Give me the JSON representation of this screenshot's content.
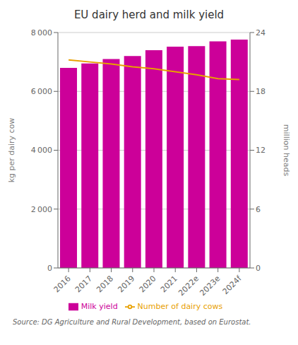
{
  "chart_data": {
    "type": "bar",
    "title": "EU dairy herd and milk yield",
    "categories": [
      "2016",
      "2017",
      "2018",
      "2019",
      "2020",
      "2021",
      "2022e",
      "2023e",
      "2024f"
    ],
    "series": [
      {
        "name": "Milk yield",
        "type": "bar",
        "color": "#CC0099",
        "values": [
          6800,
          6950,
          7100,
          7200,
          7400,
          7520,
          7540,
          7700,
          7760
        ]
      },
      {
        "name": "Number of dairy cows",
        "type": "line",
        "axis": "y2",
        "color": "#E8A000",
        "values": [
          21.2,
          21.0,
          20.8,
          20.5,
          20.3,
          20.0,
          19.7,
          19.3,
          19.2
        ]
      }
    ],
    "ylabel": "kg per dairy cow",
    "y2label": "million heads",
    "ylim": [
      0,
      8000
    ],
    "yticks": [
      0,
      {
        "value": 2000,
        "label": "2 000"
      },
      {
        "value": 4000,
        "label": "4 000"
      },
      {
        "value": 6000,
        "label": "6 000"
      },
      {
        "value": 8000,
        "label": "8 000"
      }
    ],
    "y2lim": [
      0,
      24
    ],
    "y2ticks": [
      0,
      6,
      12,
      18,
      24
    ],
    "grid": true,
    "legend": "bottom",
    "annotations": [
      "Source: DG Agriculture and Rural Development, based on Eurostat."
    ]
  }
}
